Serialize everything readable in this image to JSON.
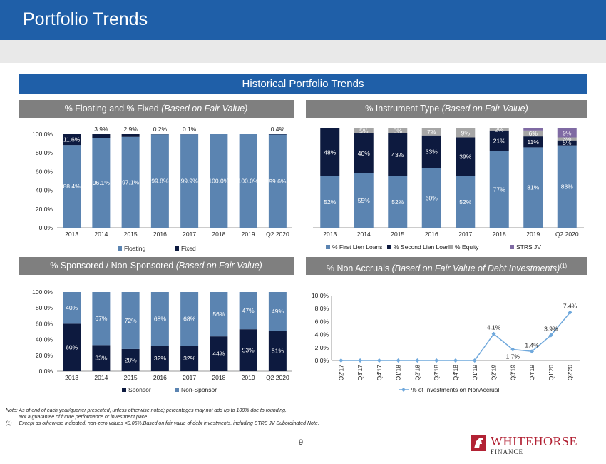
{
  "page": {
    "title": "Portfolio Trends",
    "banner": "Historical Portfolio Trends",
    "page_number": "9",
    "colors": {
      "blue": "#1f5fa8",
      "steel": "#5b84b1",
      "navy": "#0d1a3f",
      "grey": "#a6a6a6",
      "purple": "#7f6aa3"
    }
  },
  "sections": {
    "floating": {
      "title": "% Floating and % Fixed ",
      "title_italic": "(Based on Fair Value)"
    },
    "instrument": {
      "title": "% Instrument Type ",
      "title_italic": "(Based on Fair Value)"
    },
    "sponsored": {
      "title": "% Sponsored / Non-Sponsored ",
      "title_italic": "(Based on Fair Value)"
    },
    "nonaccrual": {
      "title": "% Non Accruals ",
      "title_italic": "(Based on Fair Value of Debt Investments)",
      "superscript": "(1)"
    }
  },
  "footnotes": {
    "note": "Note: As of end of each year/quarter presented, unless otherwise noted; percentages may not add up to 100% due to rounding.",
    "note2": "Not a guarantee of future performance or investment pace.",
    "fn1_marker": "(1)",
    "fn1": "Except as otherwise indicated, non-zero values <0.05%.Based on fair value of debt investments, including STRS JV Subordinated Note."
  },
  "logo": {
    "line1": "WHITEHORSE",
    "line2": "FINANCE"
  },
  "chart_data": [
    {
      "id": "floating",
      "type": "bar",
      "stacked": true,
      "categories": [
        "2013",
        "2014",
        "2015",
        "2016",
        "2017",
        "2018",
        "2019",
        "Q2 2020"
      ],
      "series": [
        {
          "name": "Floating",
          "color": "#5b84b1",
          "values": [
            88.4,
            96.1,
            97.1,
            99.8,
            99.9,
            100.0,
            100.0,
            99.6
          ],
          "labels": [
            "88.4%",
            "96.1%",
            "97.1%",
            "99.8%",
            "99.9%",
            "100.0%",
            "100.0%",
            "99.6%"
          ]
        },
        {
          "name": "Fixed",
          "color": "#0d1a3f",
          "values": [
            11.6,
            3.9,
            2.9,
            0.2,
            0.1,
            0.0,
            0.0,
            0.4
          ],
          "labels": [
            "11.6%",
            "3.9%",
            "2.9%",
            "0.2%",
            "0.1%",
            "",
            "",
            "0.4%"
          ]
        }
      ],
      "yticks": [
        "0.0%",
        "20.0%",
        "40.0%",
        "60.0%",
        "80.0%",
        "100.0%"
      ],
      "ylim": [
        0,
        100
      ],
      "legend": "bottom"
    },
    {
      "id": "instrument",
      "type": "bar",
      "stacked": true,
      "categories": [
        "2013",
        "2014",
        "2015",
        "2016",
        "2017",
        "2018",
        "2019",
        "Q2 2020"
      ],
      "series": [
        {
          "name": "% First Lien Loans",
          "color": "#5b84b1",
          "values": [
            52,
            55,
            52,
            60,
            52,
            77,
            81,
            83
          ],
          "labels": [
            "52%",
            "55%",
            "52%",
            "60%",
            "52%",
            "77%",
            "81%",
            "83%"
          ]
        },
        {
          "name": "% Second Lien Loans",
          "color": "#0d1a3f",
          "values": [
            48,
            40,
            43,
            33,
            39,
            21,
            11,
            5
          ],
          "labels": [
            "48%",
            "40%",
            "43%",
            "33%",
            "39%",
            "21%",
            "11%",
            "5%"
          ]
        },
        {
          "name": "% Equity",
          "color": "#a6a6a6",
          "values": [
            0,
            5,
            5,
            7,
            9,
            2,
            6,
            3
          ],
          "labels": [
            "",
            "5%",
            "5%",
            "7%",
            "9%",
            "2%",
            "6%",
            "3%"
          ]
        },
        {
          "name": "STRS JV",
          "color": "#7f6aa3",
          "values": [
            0,
            0,
            0,
            0,
            0,
            0,
            2,
            9
          ],
          "labels": [
            "",
            "",
            "",
            "",
            "",
            "",
            "",
            "9%"
          ]
        }
      ],
      "ylim": [
        0,
        100
      ],
      "legend": "bottom"
    },
    {
      "id": "sponsored",
      "type": "bar",
      "stacked": true,
      "categories": [
        "2013",
        "2014",
        "2015",
        "2016",
        "2017",
        "2018",
        "2019",
        "Q2 2020"
      ],
      "series": [
        {
          "name": "Sponsor",
          "color": "#0d1a3f",
          "values": [
            60,
            33,
            28,
            32,
            32,
            44,
            53,
            51
          ],
          "labels": [
            "60%",
            "33%",
            "28%",
            "32%",
            "32%",
            "44%",
            "53%",
            "51%"
          ]
        },
        {
          "name": "Non-Sponsor",
          "color": "#5b84b1",
          "values": [
            40,
            67,
            72,
            68,
            68,
            56,
            47,
            49
          ],
          "labels": [
            "40%",
            "67%",
            "72%",
            "68%",
            "68%",
            "56%",
            "47%",
            "49%"
          ]
        }
      ],
      "yticks": [
        "0.0%",
        "20.0%",
        "40.0%",
        "60.0%",
        "80.0%",
        "100.0%"
      ],
      "ylim": [
        0,
        100
      ],
      "legend": "bottom"
    },
    {
      "id": "nonaccrual",
      "type": "line",
      "categories": [
        "Q2'17",
        "Q3'17",
        "Q4'17",
        "Q1'18",
        "Q2'18",
        "Q3'18",
        "Q4'18",
        "Q1'19",
        "Q2'19",
        "Q3'19",
        "Q4'19",
        "Q1'20",
        "Q2'20"
      ],
      "series": [
        {
          "name": "% of Investments on NonAccrual",
          "color": "#6fa8dc",
          "values": [
            0,
            0,
            0,
            0,
            0,
            0,
            0,
            0,
            4.1,
            1.7,
            1.4,
            3.9,
            7.4
          ],
          "labels": [
            "",
            "",
            "",
            "",
            "",
            "",
            "",
            "",
            "4.1%",
            "1.7%",
            "1.4%",
            "3.9%",
            "7.4%"
          ]
        }
      ],
      "yticks": [
        "0.0%",
        "2.0%",
        "4.0%",
        "6.0%",
        "8.0%",
        "10.0%"
      ],
      "ylim": [
        0,
        10
      ],
      "legend": "bottom"
    }
  ]
}
